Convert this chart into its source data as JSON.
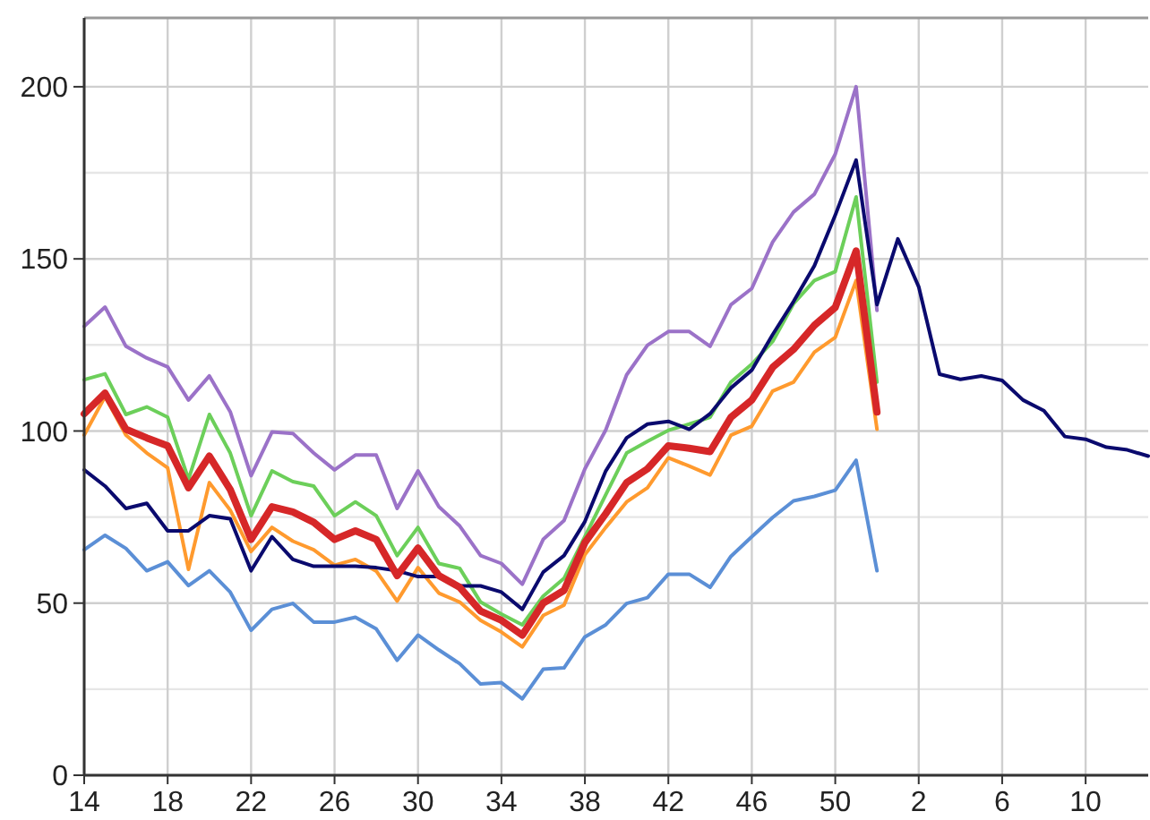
{
  "chart_data": {
    "type": "line",
    "categories": [
      "14",
      null,
      null,
      null,
      "18",
      null,
      null,
      null,
      "22",
      null,
      null,
      null,
      "26",
      null,
      null,
      null,
      "30",
      null,
      null,
      null,
      "34",
      null,
      null,
      null,
      "38",
      null,
      null,
      null,
      "42",
      null,
      null,
      null,
      "46",
      null,
      null,
      null,
      "50",
      null,
      null,
      null,
      "2",
      null,
      null,
      null,
      "6",
      null,
      null,
      null,
      "10",
      null,
      null,
      null
    ],
    "ylim": [
      0,
      220
    ],
    "yticks": [
      0,
      {
        "value": 25,
        "label": null
      },
      50,
      {
        "value": 75,
        "label": null
      },
      100,
      {
        "value": 125,
        "label": null
      },
      150,
      {
        "value": 175,
        "label": null
      },
      200
    ],
    "grid": true,
    "marker": "none",
    "line_style": "solid",
    "series": [
      {
        "color": "#5b8fd6",
        "values": [
          65.5,
          69.7,
          65.9,
          59.4,
          62,
          55.1,
          59.4,
          53.2,
          42.1,
          48.2,
          49.9,
          44.5,
          44.5,
          45.9,
          42.5,
          33.4,
          40.7,
          36.4,
          32.4,
          26.5,
          26.9,
          22.2,
          30.8,
          31.2,
          40.2,
          43.7,
          49.9,
          51.6,
          58.4,
          58.4,
          54.6,
          63.6,
          69.3,
          74.9,
          79.7,
          81,
          82.8,
          91.5,
          59.4,
          null,
          null,
          null,
          null,
          null,
          null,
          null,
          null,
          null,
          null,
          null,
          null,
          null
        ]
      },
      {
        "color": "#ff9a2e",
        "values": [
          98.8,
          110,
          98.8,
          93.6,
          89.3,
          59.8,
          85,
          77,
          65,
          72,
          68,
          65.5,
          61,
          62.7,
          59.3,
          50.6,
          60.3,
          52.9,
          50.3,
          45,
          41.6,
          37.3,
          46.4,
          49.4,
          64.1,
          72,
          79.4,
          83.5,
          92.2,
          89.8,
          87.2,
          98.8,
          101.4,
          111.6,
          114.2,
          122.9,
          127.2,
          143.7,
          100.5,
          null,
          null,
          null,
          null,
          null,
          null,
          null,
          null,
          null,
          null,
          null,
          null,
          null
        ]
      },
      {
        "color": "#6ccf5a",
        "values": [
          114.9,
          116.6,
          104.8,
          107,
          104,
          86,
          104.8,
          93.6,
          75.4,
          88.4,
          85.3,
          84,
          75.4,
          79.4,
          75.4,
          63.8,
          72,
          61.5,
          60.1,
          50.3,
          46.8,
          43.7,
          52,
          57.2,
          69.3,
          81.5,
          93.6,
          97,
          100.2,
          102,
          104,
          114.2,
          119.4,
          126,
          137,
          143.7,
          146.3,
          168,
          114.2,
          null,
          null,
          null,
          null,
          null,
          null,
          null,
          null,
          null,
          null,
          null,
          null,
          null
        ]
      },
      {
        "color": "#9b72c8",
        "values": [
          130.4,
          136,
          124.6,
          121.2,
          118.6,
          109,
          116,
          105.6,
          87,
          99.7,
          99.3,
          93.6,
          88.7,
          93,
          93,
          77.5,
          88.4,
          78,
          72.4,
          63.8,
          61.5,
          55.5,
          68.5,
          74,
          89,
          100.3,
          116.3,
          124.9,
          128.9,
          128.9,
          124.6,
          136.7,
          141.4,
          154.9,
          163.6,
          168.8,
          180.4,
          200,
          135,
          null,
          null,
          null,
          null,
          null,
          null,
          null,
          null,
          null,
          null,
          null,
          null,
          null
        ]
      },
      {
        "color": "#0a0a6e",
        "values": [
          88.7,
          84,
          77.5,
          79,
          71,
          71,
          75.4,
          74.5,
          59.4,
          69.3,
          62.7,
          60.7,
          60.7,
          60.7,
          60.3,
          59.4,
          57.7,
          57.7,
          55,
          55,
          53.2,
          48.2,
          59,
          63.8,
          73.7,
          88.4,
          98,
          102,
          102.8,
          100.5,
          105,
          112.5,
          117.7,
          128,
          137.6,
          148,
          162.7,
          178.7,
          136.7,
          155.8,
          141.9,
          116.5,
          115,
          116,
          114.7,
          109,
          105.9,
          98.4,
          97.6,
          95.3,
          94.5,
          92.7
        ]
      },
      {
        "color": "#d62728",
        "values": [
          105,
          111,
          100.5,
          98,
          95.7,
          83.5,
          92.7,
          83,
          68.5,
          78,
          76.5,
          73.5,
          68.5,
          71,
          68.5,
          58,
          66,
          58,
          54.6,
          47.7,
          45,
          40.7,
          50,
          53.7,
          67.6,
          76,
          85,
          89,
          95.7,
          95,
          94,
          104,
          109,
          118.5,
          123.7,
          130.7,
          135.9,
          152.3,
          105.5,
          null,
          null,
          null,
          null,
          null,
          null,
          null,
          null,
          null,
          null,
          null,
          null,
          null
        ]
      }
    ]
  }
}
